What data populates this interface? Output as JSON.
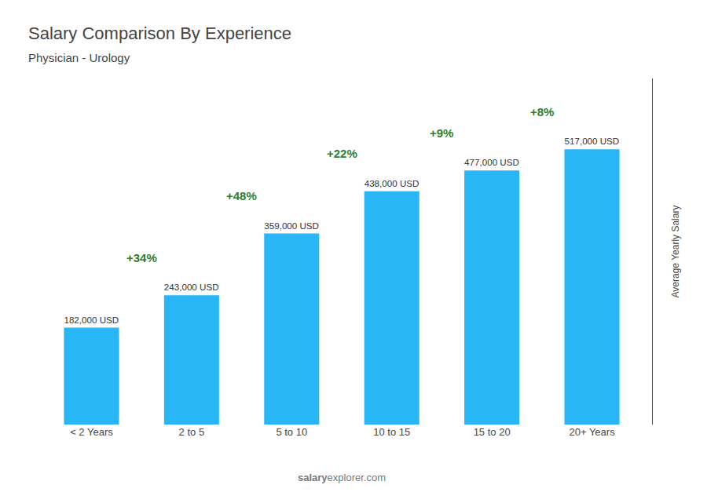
{
  "chart_data": {
    "type": "bar",
    "title": "Salary Comparison By Experience",
    "subtitle": "Physician - Urology",
    "categories": [
      "< 2 Years",
      "2 to 5",
      "5 to 10",
      "10 to 15",
      "15 to 20",
      "20+ Years"
    ],
    "values": [
      182000,
      243000,
      359000,
      438000,
      477000,
      517000
    ],
    "value_labels": [
      "182,000 USD",
      "243,000 USD",
      "359,000 USD",
      "438,000 USD",
      "477,000 USD",
      "517,000 USD"
    ],
    "data_labels": true,
    "color": "#29b6f6",
    "ylabel": "Average Yearly Salary",
    "ylim": [
      0,
      650000
    ],
    "tick_labels": "x",
    "grid": false,
    "annotations": [
      "+34%",
      "+48%",
      "+22%",
      "+9%",
      "+8%"
    ],
    "watermark": [
      "salary",
      "explorer.com"
    ]
  }
}
